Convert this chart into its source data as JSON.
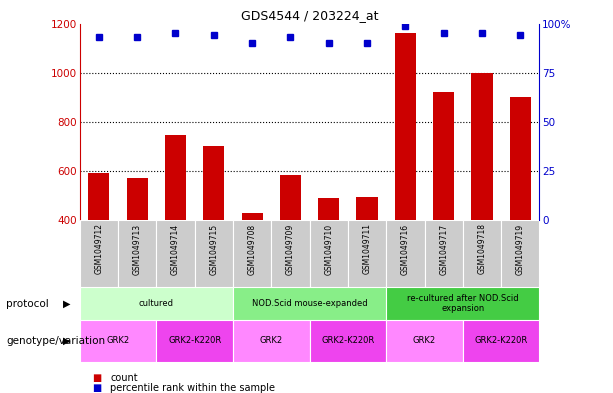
{
  "title": "GDS4544 / 203224_at",
  "samples": [
    "GSM1049712",
    "GSM1049713",
    "GSM1049714",
    "GSM1049715",
    "GSM1049708",
    "GSM1049709",
    "GSM1049710",
    "GSM1049711",
    "GSM1049716",
    "GSM1049717",
    "GSM1049718",
    "GSM1049719"
  ],
  "counts": [
    590,
    572,
    745,
    700,
    430,
    585,
    490,
    495,
    1160,
    920,
    1000,
    900
  ],
  "percentile_ranks": [
    93,
    93,
    95,
    94,
    90,
    93,
    90,
    90,
    99,
    95,
    95,
    94
  ],
  "bar_color": "#cc0000",
  "dot_color": "#0000cc",
  "ylim_left": [
    400,
    1200
  ],
  "ylim_right": [
    0,
    100
  ],
  "yticks_left": [
    400,
    600,
    800,
    1000,
    1200
  ],
  "yticks_right": [
    0,
    25,
    50,
    75,
    100
  ],
  "protocols": [
    {
      "label": "cultured",
      "start": 0,
      "end": 4,
      "color": "#ccffcc"
    },
    {
      "label": "NOD.Scid mouse-expanded",
      "start": 4,
      "end": 8,
      "color": "#88ee88"
    },
    {
      "label": "re-cultured after NOD.Scid\nexpansion",
      "start": 8,
      "end": 12,
      "color": "#44cc44"
    }
  ],
  "genotypes": [
    {
      "label": "GRK2",
      "start": 0,
      "end": 2,
      "color": "#ff88ff"
    },
    {
      "label": "GRK2-K220R",
      "start": 2,
      "end": 4,
      "color": "#ee44ee"
    },
    {
      "label": "GRK2",
      "start": 4,
      "end": 6,
      "color": "#ff88ff"
    },
    {
      "label": "GRK2-K220R",
      "start": 6,
      "end": 8,
      "color": "#ee44ee"
    },
    {
      "label": "GRK2",
      "start": 8,
      "end": 10,
      "color": "#ff88ff"
    },
    {
      "label": "GRK2-K220R",
      "start": 10,
      "end": 12,
      "color": "#ee44ee"
    }
  ],
  "sample_bg_color": "#cccccc",
  "protocol_row_label": "protocol",
  "genotype_row_label": "genotype/variation",
  "legend_count_label": "count",
  "legend_percentile_label": "percentile rank within the sample",
  "left_axis_color": "#cc0000",
  "right_axis_color": "#0000cc",
  "grid_color": "#000000"
}
